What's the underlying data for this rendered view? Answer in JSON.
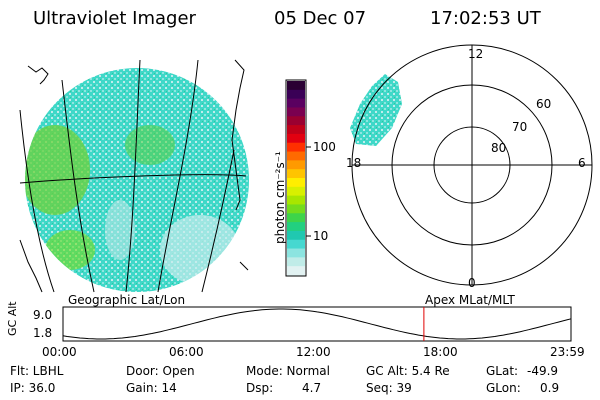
{
  "header": {
    "title": "Ultraviolet Imager",
    "date": "05 Dec 07",
    "time": "17:02:53 UT"
  },
  "colorbar": {
    "unit_label": "photon cm⁻²s⁻¹",
    "ticks": [
      "100",
      "10"
    ],
    "colors": [
      "#2a0033",
      "#3a0056",
      "#5a0060",
      "#7a0050",
      "#9a0030",
      "#c00018",
      "#e20010",
      "#ff3000",
      "#ff6a00",
      "#ff9a00",
      "#ffc400",
      "#ffee00",
      "#d8f000",
      "#a8e600",
      "#74dc1c",
      "#3ed44a",
      "#22d080",
      "#20c8b0",
      "#46d8d0",
      "#8ce4e0",
      "#c0ece8",
      "#e2f2f2"
    ]
  },
  "geo_panel": {
    "label": "Geographic Lat/Lon",
    "fill_color": "#3fd8c8",
    "green_color": "#6ed23a"
  },
  "polar_panel": {
    "label": "Apex MLat/MLT",
    "mlt_labels": {
      "top": "12",
      "right": "6",
      "bottom": "0",
      "left": "18"
    },
    "lat_labels": [
      "60",
      "70",
      "80"
    ]
  },
  "altplot": {
    "ylabel": "GC Alt",
    "yticks": [
      "9.0",
      "1.8"
    ],
    "xticks": [
      "00:00",
      "06:00",
      "12:00",
      "18:00",
      "23:59"
    ],
    "marker_color": "#e00000",
    "marker_time_hours": 17.05
  },
  "info": {
    "flt": "Flt: LBHL",
    "ip": "IP: 36.0",
    "door": "Door: Open",
    "gain": "Gain: 14",
    "mode": "Mode: Normal",
    "dsp": "Dsp:",
    "dsp_value": "4.7",
    "gc_alt": "GC Alt: 5.4 Re",
    "seq": "Seq: 39",
    "glat_label": "GLat:",
    "glat_value": "-49.9",
    "glon_label": "GLon:",
    "glon_value": "0.9"
  }
}
